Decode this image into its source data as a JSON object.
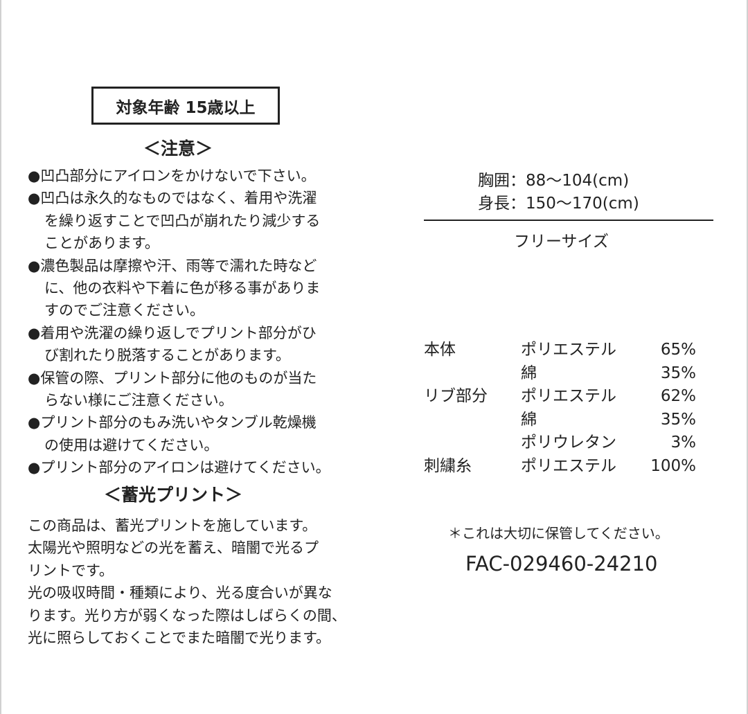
{
  "age_label": "対象年齢 15歳以上",
  "caution": {
    "heading": "＜注意＞",
    "lines": [
      "●凹凸部分にアイロンをかけないで下さい。",
      "●凹凸は永久的なものではなく、着用や洗濯",
      "を繰り返すことで凹凸が崩れたり減少する",
      "ことがあります。",
      "●濃色製品は摩擦や汗、雨等で濡れた時など",
      "に、他の衣料や下着に色が移る事がありま",
      "すのでご注意ください。",
      "●着用や洗濯の繰り返しでプリント部分がひ",
      "び割れたり脱落することがあります。",
      "●保管の際、プリント部分に他のものが当た",
      "らない様にご注意ください。",
      "●プリント部分のもみ洗いやタンブル乾燥機",
      "の使用は避けてください。",
      "●プリント部分のアイロンは避けてください。"
    ]
  },
  "luminous": {
    "heading": "＜蓄光プリント＞",
    "lines": [
      "この商品は、蓄光プリントを施しています。",
      "太陽光や照明などの光を蓄え、暗闇で光るプ",
      "リントです。",
      "光の吸収時間・種類により、光る度合いが異な",
      "ります。光り方が弱くなった際はしばらくの間、",
      "光に照らしておくことでまた暗闇で光ります。"
    ]
  },
  "size": {
    "chest": "胸囲：88〜104(cm)",
    "height": "身長：150〜170(cm)",
    "free": "フリーサイズ"
  },
  "materials": [
    {
      "part": "本体",
      "material": "ポリエステル",
      "pct": "65%"
    },
    {
      "part": "",
      "material": "綿",
      "pct": "35%"
    },
    {
      "part": "リブ部分",
      "material": "ポリエステル",
      "pct": "62%"
    },
    {
      "part": "",
      "material": "綿",
      "pct": "35%"
    },
    {
      "part": "",
      "material": "ポリウレタン",
      "pct": "3%"
    },
    {
      "part": "刺繍糸",
      "material": "ポリエステル",
      "pct": "100%"
    }
  ],
  "note": "＊これは大切に保管してください。",
  "code": "FAC-029460-24210"
}
